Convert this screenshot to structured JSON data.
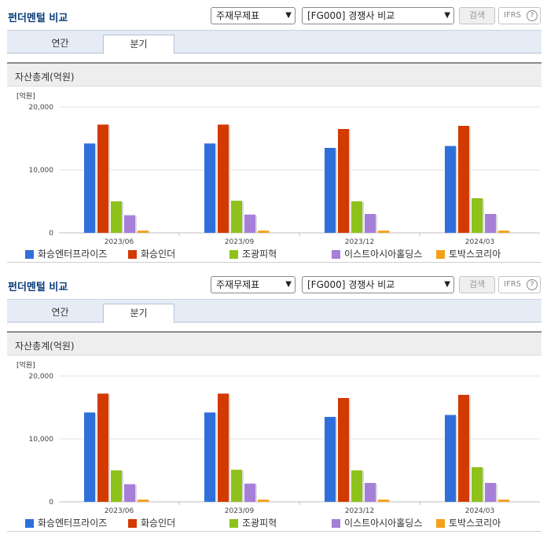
{
  "header": {
    "title": "펀더멘털 비교",
    "select_1": "주재무제표",
    "select_2": "[FG000] 경쟁사 비교",
    "search_label": "검색",
    "ifrs_label": "IFRS",
    "help_glyph": "?"
  },
  "tabs": [
    {
      "label": "연간",
      "active": false
    },
    {
      "label": "분기",
      "active": true
    }
  ],
  "section": {
    "title": "자산총계(억원)"
  },
  "colors": [
    "#2f6fdb",
    "#d23a00",
    "#8ec21a",
    "#a67fd8",
    "#f5a01a"
  ],
  "chart_data": {
    "type": "bar",
    "ylabel": "[억원]",
    "ylim": [
      0,
      20000
    ],
    "yticks": [
      0,
      10000,
      20000
    ],
    "ytick_labels": [
      "0",
      "10,000",
      "20,000"
    ],
    "categories": [
      "2023/06",
      "2023/09",
      "2023/12",
      "2024/03"
    ],
    "series": [
      {
        "name": "화승엔터프라이즈",
        "values": [
          14200,
          14200,
          13500,
          13800
        ]
      },
      {
        "name": "화승인더",
        "values": [
          17200,
          17200,
          16500,
          17000
        ]
      },
      {
        "name": "조광피혁",
        "values": [
          5000,
          5100,
          5000,
          5500
        ]
      },
      {
        "name": "이스트아시아홀딩스",
        "values": [
          2800,
          2900,
          3000,
          3000
        ]
      },
      {
        "name": "토박스코리아",
        "values": [
          350,
          350,
          350,
          350
        ]
      }
    ],
    "legend_position": "bottom",
    "grid": true
  }
}
